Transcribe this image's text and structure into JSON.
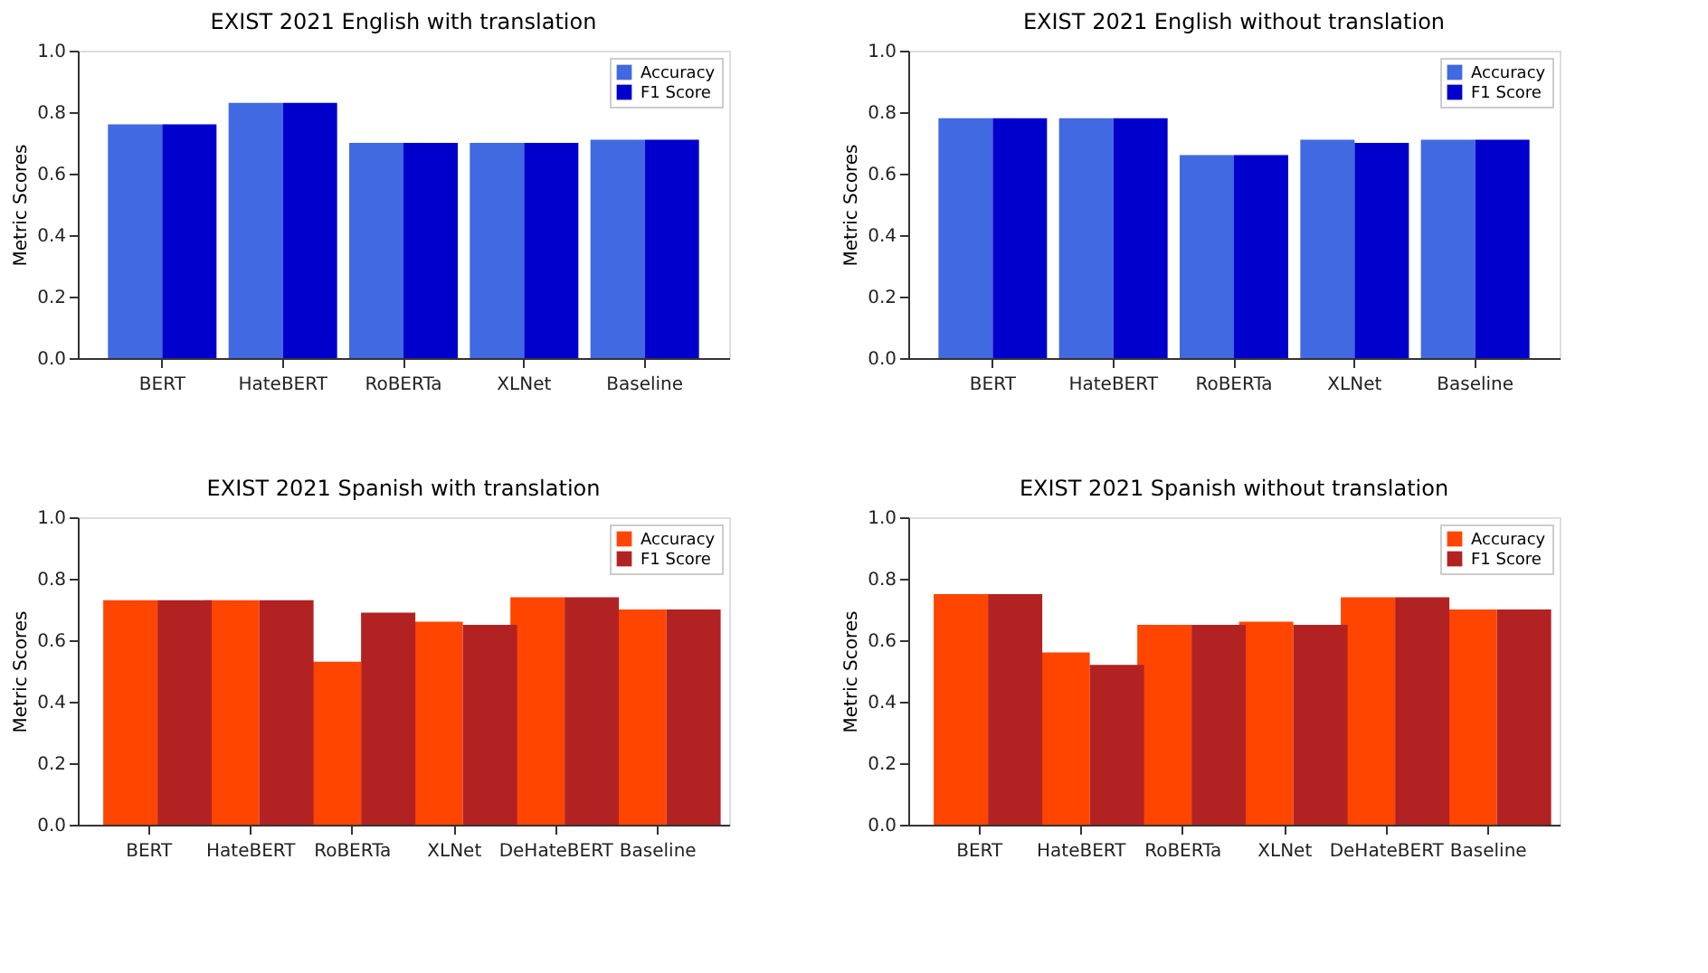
{
  "chart_data": [
    {
      "type": "bar",
      "title": "EXIST 2021 English with translation",
      "ylabel": "Metric Scores",
      "categories": [
        "BERT",
        "HateBERT",
        "RoBERTa",
        "XLNet",
        "Baseline"
      ],
      "legend": "top right",
      "ylim": [
        0,
        1
      ],
      "yticks": [
        {
          "value": 0,
          "label": "0.0"
        },
        {
          "value": 0.2,
          "label": "0.2"
        },
        {
          "value": 0.4,
          "label": "0.4"
        },
        {
          "value": 0.6,
          "label": "0.6"
        },
        {
          "value": 0.8,
          "label": "0.8"
        },
        {
          "value": 1,
          "label": "1.0"
        }
      ],
      "series": [
        {
          "name": "Accuracy",
          "color": "#4169e1",
          "values": [
            0.76,
            0.83,
            0.7,
            0.7,
            0.71
          ]
        },
        {
          "name": "F1 Score",
          "color": "#0000cd",
          "values": [
            0.76,
            0.83,
            0.7,
            0.7,
            0.71
          ]
        }
      ]
    },
    {
      "type": "bar",
      "title": "EXIST 2021 English without translation",
      "ylabel": "Metric Scores",
      "categories": [
        "BERT",
        "HateBERT",
        "RoBERTa",
        "XLNet",
        "Baseline"
      ],
      "legend": "top right",
      "ylim": [
        0,
        1
      ],
      "yticks": [
        {
          "value": 0,
          "label": "0.0"
        },
        {
          "value": 0.2,
          "label": "0.2"
        },
        {
          "value": 0.4,
          "label": "0.4"
        },
        {
          "value": 0.6,
          "label": "0.6"
        },
        {
          "value": 0.8,
          "label": "0.8"
        },
        {
          "value": 1,
          "label": "1.0"
        }
      ],
      "series": [
        {
          "name": "Accuracy",
          "color": "#4169e1",
          "values": [
            0.78,
            0.78,
            0.66,
            0.71,
            0.71
          ]
        },
        {
          "name": "F1 Score",
          "color": "#0000cd",
          "values": [
            0.78,
            0.78,
            0.66,
            0.7,
            0.71
          ]
        }
      ]
    },
    {
      "type": "bar",
      "title": "EXIST 2021 Spanish with translation",
      "ylabel": "Metric Scores",
      "categories": [
        "BERT",
        "HateBERT",
        "RoBERTa",
        "XLNet",
        "DeHateBERT",
        "Baseline"
      ],
      "legend": "top right",
      "ylim": [
        0,
        1
      ],
      "yticks": [
        {
          "value": 0,
          "label": "0.0"
        },
        {
          "value": 0.2,
          "label": "0.2"
        },
        {
          "value": 0.4,
          "label": "0.4"
        },
        {
          "value": 0.6,
          "label": "0.6"
        },
        {
          "value": 0.8,
          "label": "0.8"
        },
        {
          "value": 1,
          "label": "1.0"
        }
      ],
      "series": [
        {
          "name": "Accuracy",
          "color": "#ff4500",
          "values": [
            0.73,
            0.73,
            0.53,
            0.66,
            0.74,
            0.7
          ]
        },
        {
          "name": "F1 Score",
          "color": "#b22222",
          "values": [
            0.73,
            0.73,
            0.69,
            0.65,
            0.74,
            0.7
          ]
        }
      ]
    },
    {
      "type": "bar",
      "title": "EXIST 2021 Spanish without translation",
      "ylabel": "Metric Scores",
      "categories": [
        "BERT",
        "HateBERT",
        "RoBERTa",
        "XLNet",
        "DeHateBERT",
        "Baseline"
      ],
      "legend": "top right",
      "ylim": [
        0,
        1
      ],
      "yticks": [
        {
          "value": 0,
          "label": "0.0"
        },
        {
          "value": 0.2,
          "label": "0.2"
        },
        {
          "value": 0.4,
          "label": "0.4"
        },
        {
          "value": 0.6,
          "label": "0.6"
        },
        {
          "value": 0.8,
          "label": "0.8"
        },
        {
          "value": 1,
          "label": "1.0"
        }
      ],
      "series": [
        {
          "name": "Accuracy",
          "color": "#ff4500",
          "values": [
            0.75,
            0.56,
            0.65,
            0.66,
            0.74,
            0.7
          ]
        },
        {
          "name": "F1 Score",
          "color": "#b22222",
          "values": [
            0.75,
            0.52,
            0.65,
            0.65,
            0.74,
            0.7
          ]
        }
      ]
    }
  ]
}
